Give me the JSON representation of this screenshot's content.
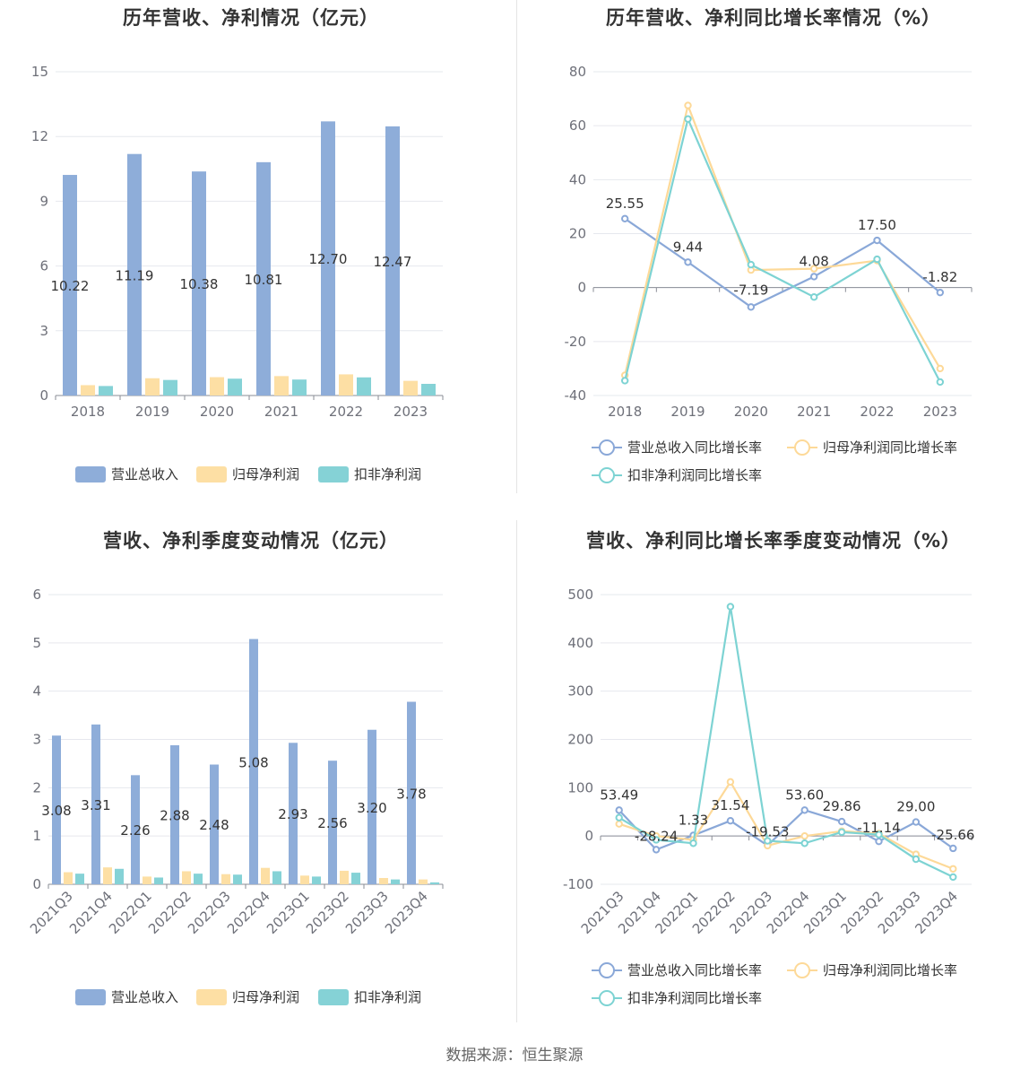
{
  "source_text": "数据来源：恒生聚源",
  "colors": {
    "revenue": "#8eadd9",
    "net_profit": "#fddfa4",
    "deducted_profit": "#85d2d6",
    "rev_line": "#8aa8d8",
    "np_line": "#fdd998",
    "dp_line": "#7dd3d3"
  },
  "chart_data": [
    {
      "type": "bar",
      "title": "历年营收、净利情况（亿元）",
      "categories": [
        "2018",
        "2019",
        "2020",
        "2021",
        "2022",
        "2023"
      ],
      "ylim": [
        0,
        15
      ],
      "yticks": [
        0,
        3,
        6,
        9,
        12,
        15
      ],
      "series": [
        {
          "name": "营业总收入",
          "values": [
            10.22,
            11.19,
            10.38,
            10.81,
            12.7,
            12.47
          ]
        },
        {
          "name": "归母净利润",
          "values": [
            0.48,
            0.8,
            0.85,
            0.9,
            0.98,
            0.68
          ]
        },
        {
          "name": "扣非净利润",
          "values": [
            0.44,
            0.72,
            0.78,
            0.74,
            0.84,
            0.54
          ]
        }
      ],
      "labels": [
        "10.22",
        "11.19",
        "10.38",
        "10.81",
        "12.70",
        "12.47"
      ],
      "legend_position": "bottom",
      "grid": true
    },
    {
      "type": "line",
      "title": "历年营收、净利同比增长率情况（%）",
      "categories": [
        "2018",
        "2019",
        "2020",
        "2021",
        "2022",
        "2023"
      ],
      "ylim": [
        -40,
        80
      ],
      "yticks": [
        -40,
        -20,
        0,
        20,
        40,
        60,
        80
      ],
      "series": [
        {
          "name": "营业总收入同比增长率",
          "values": [
            25.55,
            9.44,
            -7.19,
            4.08,
            17.5,
            -1.82
          ]
        },
        {
          "name": "归母净利润同比增长率",
          "values": [
            -32.5,
            67.5,
            6.5,
            7.0,
            10.0,
            -30.0
          ]
        },
        {
          "name": "扣非净利润同比增长率",
          "values": [
            -34.5,
            62.5,
            8.5,
            -3.5,
            10.5,
            -35.0
          ]
        }
      ],
      "labels": [
        "25.55",
        "9.44",
        "-7.19",
        "4.08",
        "17.50",
        "-1.82"
      ],
      "legend_position": "bottom",
      "grid": true
    },
    {
      "type": "bar",
      "title": "营收、净利季度变动情况（亿元）",
      "categories": [
        "2021Q3",
        "2021Q4",
        "2022Q1",
        "2022Q2",
        "2022Q3",
        "2022Q4",
        "2023Q1",
        "2023Q2",
        "2023Q3",
        "2023Q4"
      ],
      "ylim": [
        0,
        6
      ],
      "yticks": [
        0,
        1,
        2,
        3,
        4,
        5,
        6
      ],
      "series": [
        {
          "name": "营业总收入",
          "values": [
            3.08,
            3.31,
            2.26,
            2.88,
            2.48,
            5.08,
            2.93,
            2.56,
            3.2,
            3.78
          ]
        },
        {
          "name": "归母净利润",
          "values": [
            0.25,
            0.35,
            0.16,
            0.27,
            0.21,
            0.34,
            0.18,
            0.28,
            0.13,
            0.1
          ]
        },
        {
          "name": "扣非净利润",
          "values": [
            0.22,
            0.32,
            0.14,
            0.22,
            0.2,
            0.27,
            0.16,
            0.24,
            0.1,
            0.04
          ]
        }
      ],
      "labels": [
        "3.08",
        "3.31",
        "2.26",
        "2.88",
        "2.48",
        "5.08",
        "2.93",
        "2.56",
        "3.20",
        "3.78"
      ],
      "legend_position": "bottom",
      "grid": true
    },
    {
      "type": "line",
      "title": "营收、净利同比增长率季度变动情况（%）",
      "categories": [
        "2021Q3",
        "2021Q4",
        "2022Q1",
        "2022Q2",
        "2022Q3",
        "2022Q4",
        "2023Q1",
        "2023Q2",
        "2023Q3",
        "2023Q4"
      ],
      "ylim": [
        -100,
        500
      ],
      "yticks": [
        -100,
        0,
        100,
        200,
        300,
        400,
        500
      ],
      "series": [
        {
          "name": "营业总收入同比增长率",
          "values": [
            53.49,
            -28.24,
            1.33,
            31.54,
            -19.53,
            53.6,
            29.86,
            -11.14,
            29.0,
            -25.66
          ]
        },
        {
          "name": "归母净利润同比增长率",
          "values": [
            25,
            0,
            -8,
            112,
            -20,
            0,
            10,
            5,
            -38,
            -68
          ]
        },
        {
          "name": "扣非净利润同比增长率",
          "values": [
            38,
            -8,
            -15,
            475,
            -10,
            -15,
            8,
            3,
            -48,
            -85
          ]
        }
      ],
      "labels": [
        "53.49",
        "-28.24",
        "1.33",
        "31.54",
        "-19.53",
        "53.60",
        "29.86",
        "-11.14",
        "29.00",
        "-25.66"
      ],
      "legend_position": "bottom",
      "grid": true
    }
  ]
}
